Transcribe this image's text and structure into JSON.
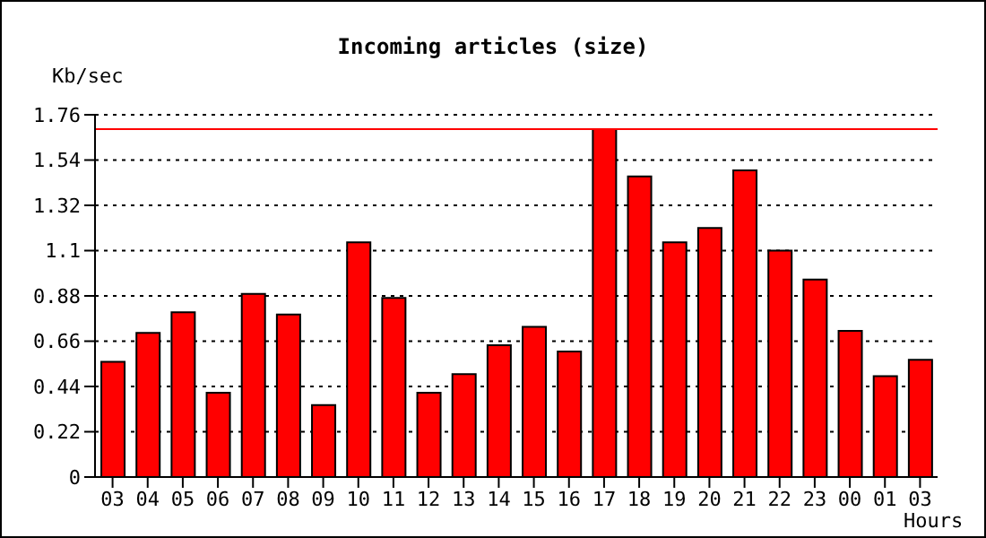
{
  "chart_data": {
    "type": "bar",
    "title": "Incoming articles (size)",
    "xlabel": "Hours",
    "ylabel": "Kb/sec",
    "categories": [
      "03",
      "04",
      "05",
      "06",
      "07",
      "08",
      "09",
      "10",
      "11",
      "12",
      "13",
      "14",
      "15",
      "16",
      "17",
      "18",
      "19",
      "20",
      "21",
      "22",
      "23",
      "00",
      "01",
      "03"
    ],
    "series": [
      {
        "color": "#ff0000",
        "values": [
          0.56,
          0.7,
          0.8,
          0.41,
          0.89,
          0.79,
          0.35,
          1.14,
          0.87,
          0.41,
          0.5,
          0.64,
          0.73,
          0.61,
          1.69,
          1.46,
          1.14,
          1.21,
          1.49,
          1.1,
          0.96,
          0.71,
          0.49,
          0.57
        ]
      }
    ],
    "ylim": [
      0,
      1.76
    ],
    "yticks": [
      0,
      0.22,
      0.44,
      0.66,
      0.88,
      1.1,
      1.32,
      1.54,
      1.76
    ],
    "grid": "y",
    "ref_lines": [
      {
        "axis": "y",
        "value": 1.69,
        "color": "#ff0000"
      }
    ]
  }
}
